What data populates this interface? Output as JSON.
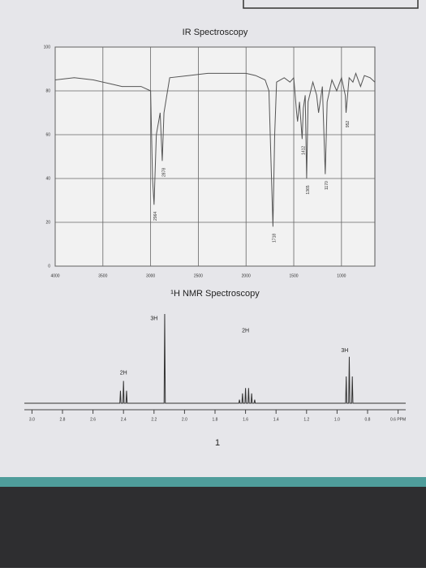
{
  "chart_data": [
    {
      "type": "line",
      "title": "IR Spectroscopy",
      "x": [
        4000,
        3800,
        3600,
        3400,
        3300,
        3100,
        3000,
        2980,
        2964,
        2940,
        2900,
        2878,
        2860,
        2800,
        2600,
        2400,
        2200,
        2000,
        1900,
        1800,
        1760,
        1740,
        1718,
        1700,
        1680,
        1600,
        1540,
        1500,
        1470,
        1460,
        1440,
        1412,
        1400,
        1380,
        1365,
        1350,
        1300,
        1260,
        1240,
        1200,
        1170,
        1150,
        1100,
        1050,
        1000,
        960,
        952,
        920,
        880,
        850,
        800,
        760,
        700,
        650
      ],
      "series": [
        {
          "color": "#555555",
          "values": [
            85,
            86,
            85,
            83,
            82,
            82,
            80,
            40,
            28,
            60,
            70,
            48,
            70,
            86,
            87,
            88,
            88,
            88,
            87,
            85,
            80,
            50,
            18,
            60,
            84,
            86,
            84,
            86,
            70,
            66,
            75,
            58,
            72,
            78,
            40,
            75,
            84,
            78,
            70,
            82,
            42,
            75,
            85,
            80,
            86,
            78,
            70,
            86,
            84,
            88,
            82,
            87,
            86,
            84
          ]
        }
      ],
      "peak_labels": [
        2964,
        2878,
        1718,
        1412,
        1365,
        1170,
        952
      ],
      "xlim": [
        4000,
        650
      ],
      "xticks": [
        4000,
        3500,
        3000,
        2500,
        2000,
        1500,
        1000
      ],
      "ylim": [
        0,
        100
      ],
      "yticks": [
        0,
        20,
        40,
        60,
        80,
        100
      ],
      "grid": true
    },
    {
      "type": "line",
      "title": "¹H NMR Spectroscopy",
      "x": [
        3.05,
        2.424,
        2.42,
        2.416,
        2.404,
        2.4,
        2.396,
        2.384,
        2.38,
        2.376,
        2.134,
        2.13,
        2.126,
        1.644,
        1.64,
        1.636,
        1.624,
        1.62,
        1.616,
        1.604,
        1.6,
        1.596,
        1.584,
        1.58,
        1.576,
        1.564,
        1.56,
        1.556,
        1.544,
        1.54,
        1.536,
        0.944,
        0.94,
        0.936,
        0.924,
        0.92,
        0.916,
        0.904,
        0.9,
        0.896,
        0.55
      ],
      "series": [
        {
          "color": "#333333",
          "values": [
            0,
            0,
            14,
            0,
            0,
            25,
            0,
            0,
            14,
            0,
            0,
            100,
            0,
            0,
            4,
            0,
            0,
            11,
            0,
            0,
            17,
            0,
            0,
            17,
            0,
            0,
            11,
            0,
            0,
            4,
            0,
            0,
            30,
            0,
            0,
            52,
            0,
            0,
            30,
            0,
            0
          ]
        }
      ],
      "annotations": [
        {
          "text": "2H",
          "x": 2.4,
          "y": 34
        },
        {
          "text": "3H",
          "x": 2.2,
          "y": 95
        },
        {
          "text": "2H",
          "x": 1.6,
          "y": 81
        },
        {
          "text": "3H",
          "x": 0.95,
          "y": 59
        }
      ],
      "xlim": [
        3.05,
        0.55
      ],
      "xticks": [
        {
          "value": 3,
          "label": "3.0"
        },
        2.8,
        2.6,
        2.4,
        2.2,
        {
          "value": 2,
          "label": "2.0"
        },
        1.8,
        1.6,
        1.4,
        1.2,
        {
          "value": 1,
          "label": "1.0"
        },
        0.8,
        {
          "value": 0.6,
          "label": "0.6 PPM"
        }
      ],
      "ylim": [
        0,
        100
      ],
      "grid": false,
      "footer": "1"
    }
  ]
}
